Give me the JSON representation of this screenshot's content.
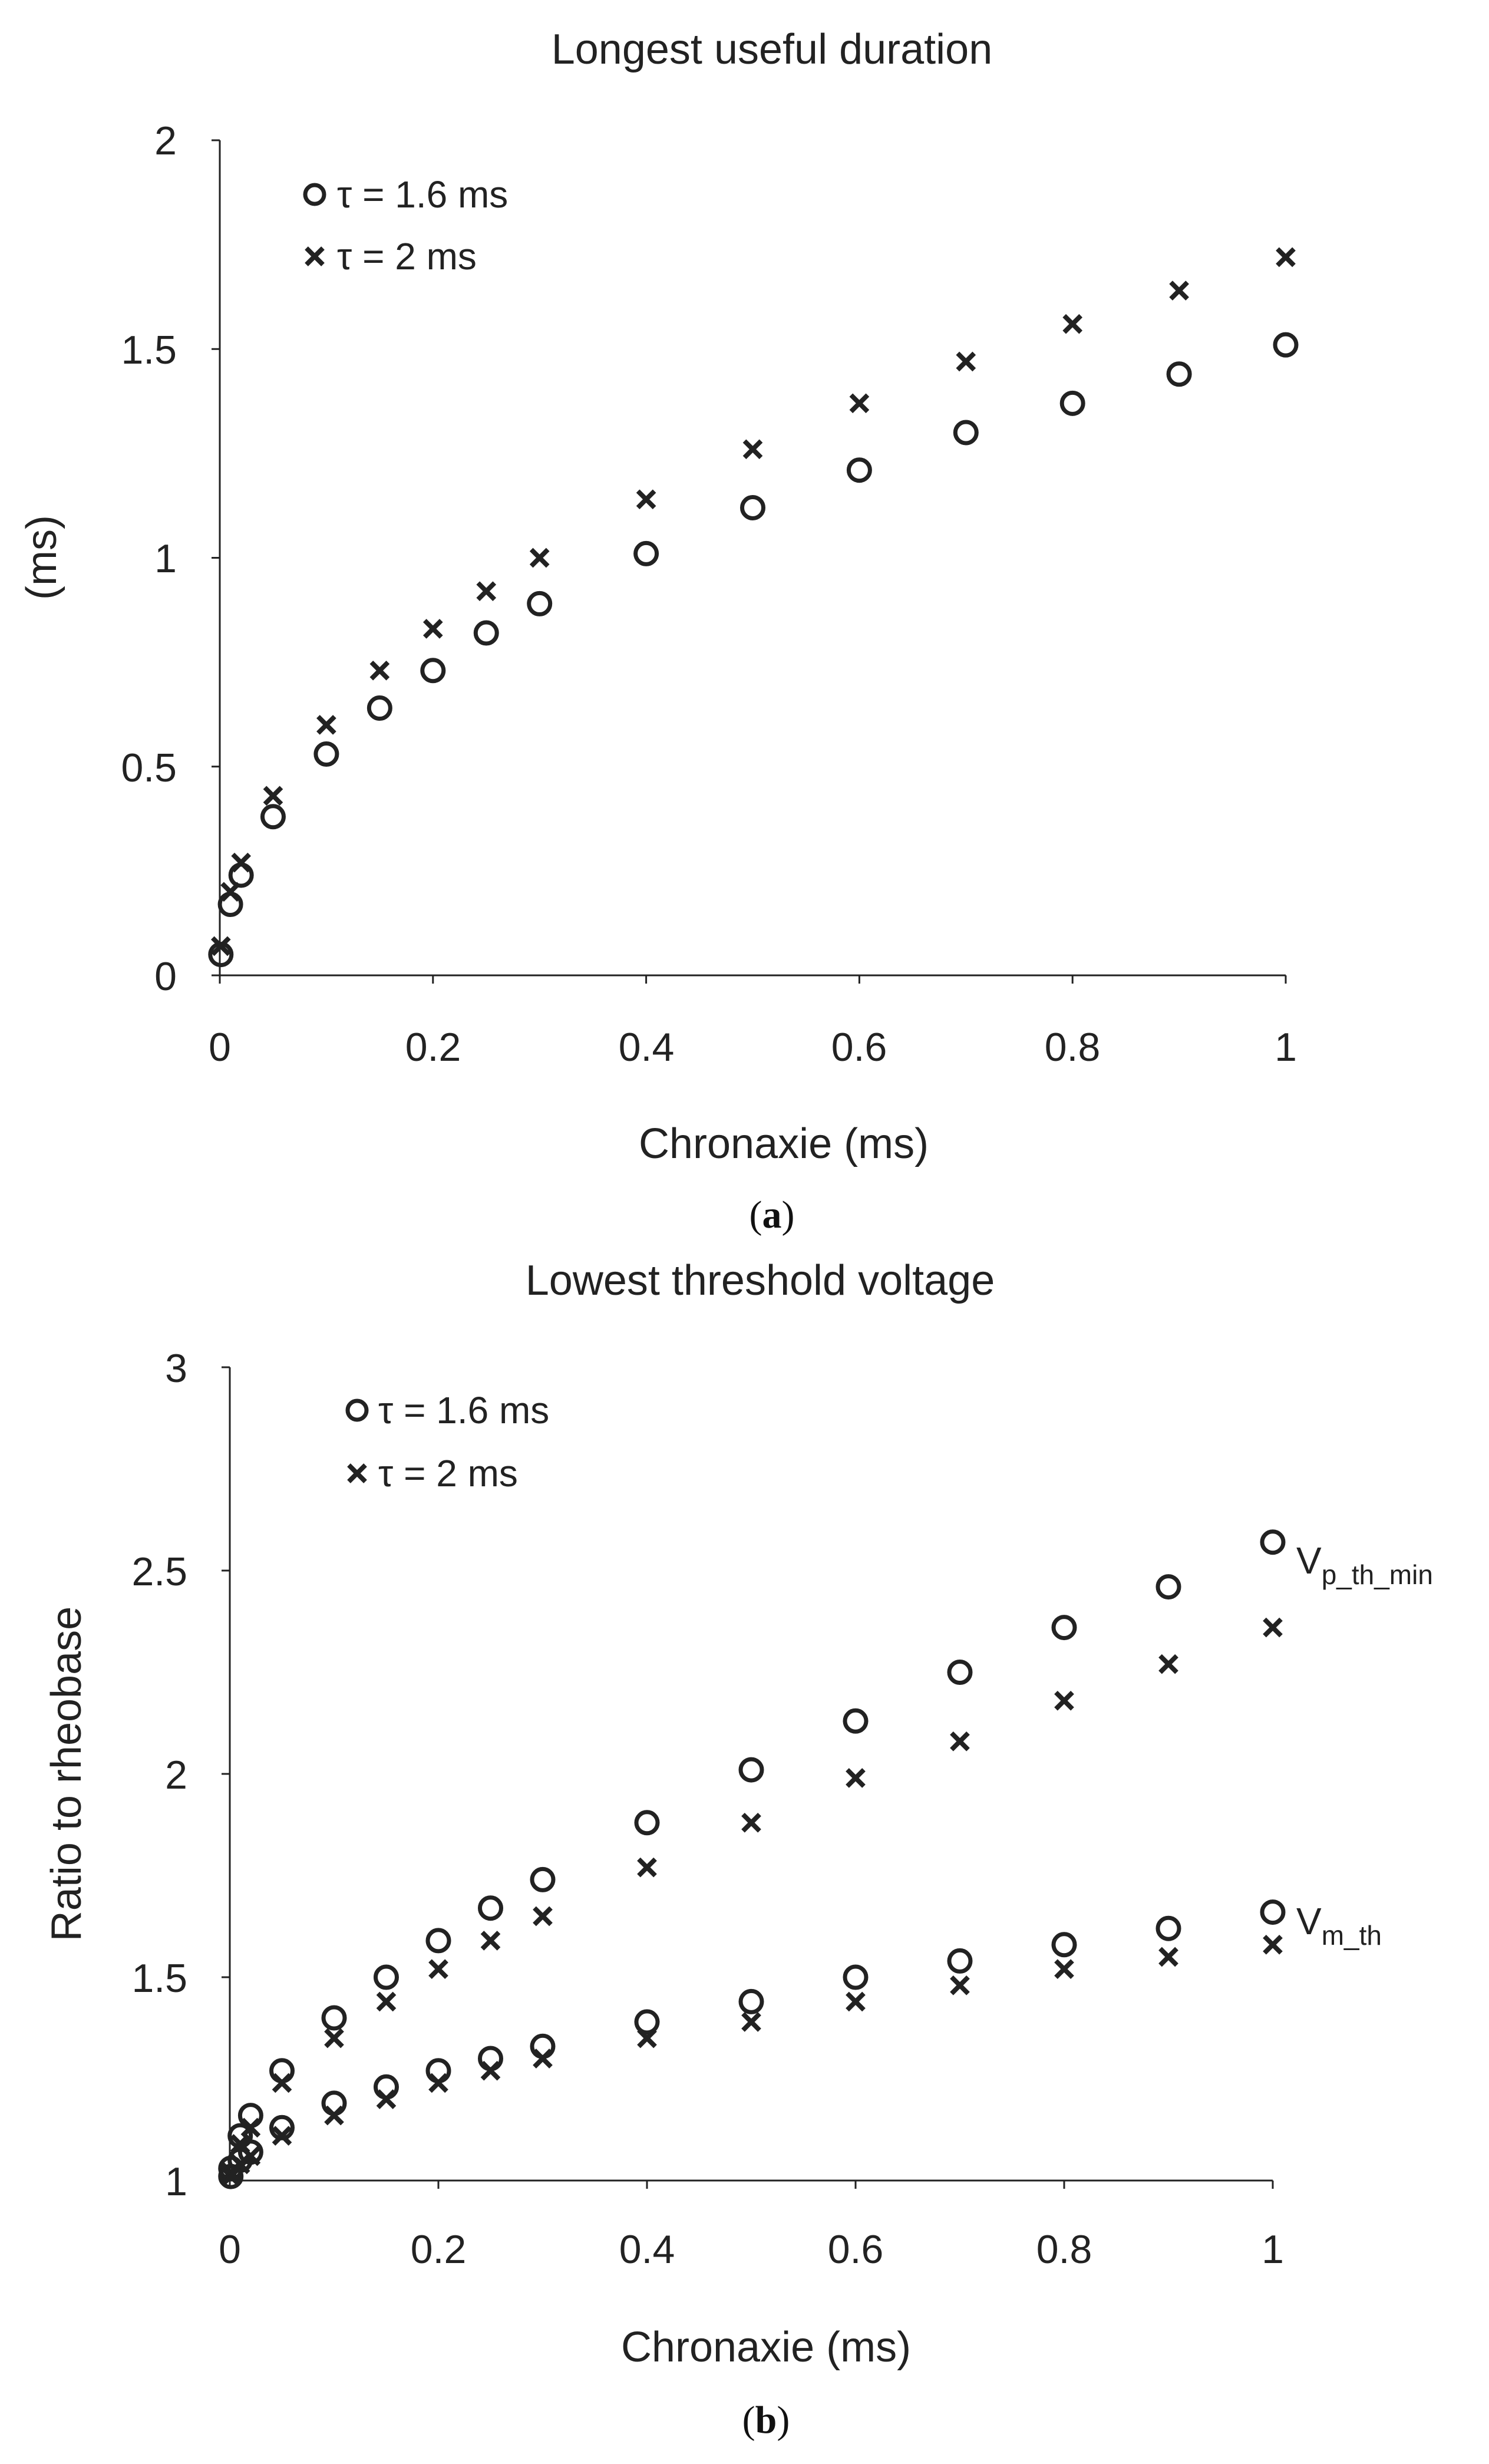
{
  "chart_data": [
    {
      "id": "a",
      "panel_label": "a",
      "type": "scatter",
      "title": "Longest useful duration",
      "xlabel": "Chronaxie (ms)",
      "ylabel": "(ms)",
      "xlim": [
        0,
        1
      ],
      "ylim": [
        0,
        2
      ],
      "xticks": [
        0,
        0.2,
        0.4,
        0.6,
        0.8,
        1
      ],
      "xtick_labels": [
        "0",
        "0.2",
        "0.4",
        "0.6",
        "0.8",
        "1"
      ],
      "yticks": [
        0,
        0.5,
        1,
        1.5,
        2
      ],
      "ytick_labels": [
        "0",
        "0.5",
        "1",
        "1.5",
        "2"
      ],
      "grid": false,
      "legend_position": "top-left",
      "x": [
        0.001,
        0.01,
        0.02,
        0.05,
        0.1,
        0.15,
        0.2,
        0.25,
        0.3,
        0.4,
        0.5,
        0.6,
        0.7,
        0.8,
        0.9,
        1
      ],
      "series": [
        {
          "name": "τ = 1.6 ms",
          "marker": "circle",
          "values": [
            0.05,
            0.17,
            0.24,
            0.38,
            0.53,
            0.64,
            0.73,
            0.82,
            0.89,
            1.01,
            1.12,
            1.21,
            1.3,
            1.37,
            1.44,
            1.51
          ]
        },
        {
          "name": "τ = 2 ms",
          "marker": "cross",
          "values": [
            0.07,
            0.2,
            0.27,
            0.43,
            0.6,
            0.73,
            0.83,
            0.92,
            1.0,
            1.14,
            1.26,
            1.37,
            1.47,
            1.56,
            1.64,
            1.72
          ]
        }
      ]
    },
    {
      "id": "b",
      "panel_label": "b",
      "type": "scatter",
      "title": "Lowest threshold voltage",
      "xlabel": "Chronaxie (ms)",
      "ylabel": "Ratio to rheobase",
      "xlim": [
        0,
        1
      ],
      "ylim": [
        1,
        3
      ],
      "xticks": [
        0,
        0.2,
        0.4,
        0.6,
        0.8,
        1
      ],
      "xtick_labels": [
        "0",
        "0.2",
        "0.4",
        "0.6",
        "0.8",
        "1"
      ],
      "yticks": [
        1,
        1.5,
        2,
        2.5,
        3
      ],
      "ytick_labels": [
        "1",
        "1.5",
        "2",
        "2.5",
        "3"
      ],
      "grid": false,
      "legend_position": "top-left",
      "x": [
        0.001,
        0.01,
        0.02,
        0.05,
        0.1,
        0.15,
        0.2,
        0.25,
        0.3,
        0.4,
        0.5,
        0.6,
        0.7,
        0.8,
        0.9,
        1
      ],
      "series": [
        {
          "name": "τ = 1.6 ms",
          "group": "Vp_th_min",
          "marker": "circle",
          "values": [
            1.03,
            1.11,
            1.16,
            1.27,
            1.4,
            1.5,
            1.59,
            1.67,
            1.74,
            1.88,
            2.01,
            2.13,
            2.25,
            2.36,
            2.46,
            2.57
          ]
        },
        {
          "name": "τ = 2 ms",
          "group": "Vp_th_min",
          "marker": "cross",
          "values": [
            1.02,
            1.09,
            1.13,
            1.24,
            1.35,
            1.44,
            1.52,
            1.59,
            1.65,
            1.77,
            1.88,
            1.99,
            2.08,
            2.18,
            2.27,
            2.36
          ]
        },
        {
          "name": "τ = 1.6 ms",
          "group": "Vm_th",
          "marker": "circle",
          "values": [
            1.01,
            1.05,
            1.07,
            1.13,
            1.19,
            1.23,
            1.27,
            1.3,
            1.33,
            1.39,
            1.44,
            1.5,
            1.54,
            1.58,
            1.62,
            1.66
          ]
        },
        {
          "name": "τ = 2 ms",
          "group": "Vm_th",
          "marker": "cross",
          "values": [
            1.01,
            1.04,
            1.06,
            1.11,
            1.16,
            1.2,
            1.24,
            1.27,
            1.3,
            1.35,
            1.39,
            1.44,
            1.48,
            1.52,
            1.55,
            1.58
          ]
        }
      ],
      "annotations": [
        {
          "group": "Vp_th_min",
          "main": "V",
          "sub": "p_th_min"
        },
        {
          "group": "Vm_th",
          "main": "V",
          "sub": "m_th"
        }
      ]
    }
  ]
}
